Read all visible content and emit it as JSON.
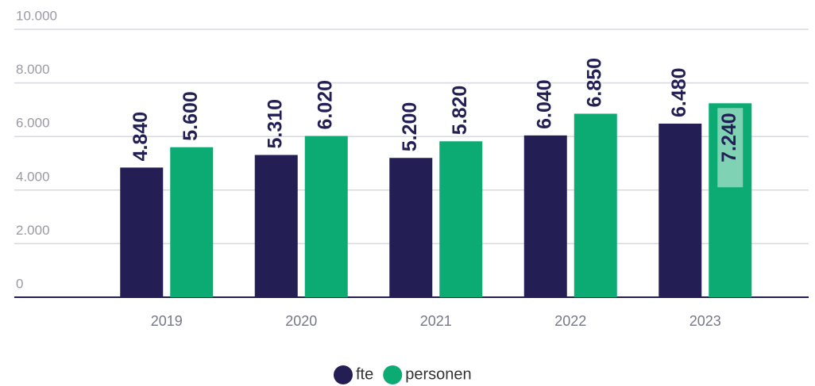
{
  "chart_data": {
    "type": "bar",
    "categories": [
      "2019",
      "2020",
      "2021",
      "2022",
      "2023"
    ],
    "series": [
      {
        "name": "fte",
        "color": "#231f54",
        "values": [
          4840,
          5310,
          5200,
          6040,
          6480
        ],
        "value_labels": [
          "4.840",
          "5.310",
          "5.200",
          "6.040",
          "6.480"
        ]
      },
      {
        "name": "personen",
        "color": "#0bab73",
        "values": [
          5600,
          6020,
          5820,
          6850,
          7240
        ],
        "value_labels": [
          "5.600",
          "6.020",
          "5.820",
          "6.850",
          "7.240"
        ]
      }
    ],
    "ylim": [
      0,
      10000
    ],
    "yticks": [
      {
        "value": 0,
        "label": "0"
      },
      {
        "value": 2000,
        "label": "2.000"
      },
      {
        "value": 4000,
        "label": "4.000"
      },
      {
        "value": 6000,
        "label": "6.000"
      },
      {
        "value": 8000,
        "label": "8.000"
      },
      {
        "value": 10000,
        "label": "10.000"
      }
    ],
    "grid": true,
    "legend": "bottom"
  }
}
